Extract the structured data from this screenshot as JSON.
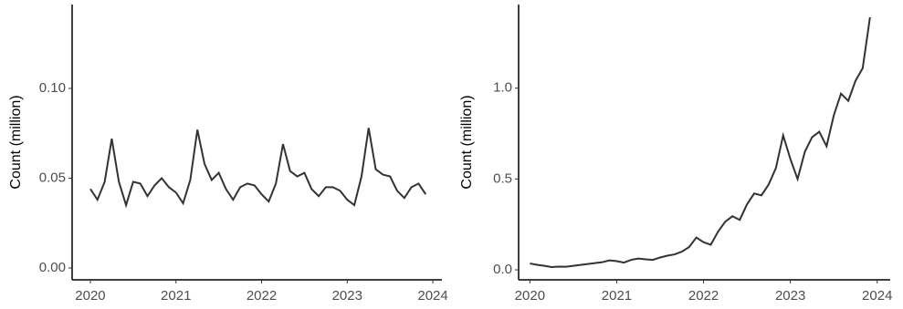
{
  "chart_data": [
    {
      "type": "line",
      "y_label": "Count (million)",
      "x": [
        2020,
        2020.083,
        2020.167,
        2020.25,
        2020.333,
        2020.417,
        2020.5,
        2020.583,
        2020.667,
        2020.75,
        2020.833,
        2020.917,
        2021,
        2021.083,
        2021.167,
        2021.25,
        2021.333,
        2021.417,
        2021.5,
        2021.583,
        2021.667,
        2021.75,
        2021.833,
        2021.917,
        2022,
        2022.083,
        2022.167,
        2022.25,
        2022.333,
        2022.417,
        2022.5,
        2022.583,
        2022.667,
        2022.75,
        2022.833,
        2022.917,
        2023,
        2023.083,
        2023.167,
        2023.25,
        2023.333,
        2023.417,
        2023.5,
        2023.583,
        2023.667,
        2023.75,
        2023.833,
        2023.917
      ],
      "series": [
        {
          "color": "#333333",
          "values": [
            0.044,
            0.038,
            0.048,
            0.072,
            0.048,
            0.035,
            0.048,
            0.047,
            0.04,
            0.046,
            0.05,
            0.045,
            0.042,
            0.036,
            0.049,
            0.077,
            0.058,
            0.049,
            0.053,
            0.044,
            0.038,
            0.045,
            0.047,
            0.046,
            0.041,
            0.037,
            0.047,
            0.069,
            0.054,
            0.051,
            0.053,
            0.044,
            0.04,
            0.045,
            0.045,
            0.043,
            0.038,
            0.035,
            0.051,
            0.078,
            0.055,
            0.052,
            0.051,
            0.043,
            0.039,
            0.045,
            0.047,
            0.041
          ]
        }
      ],
      "xlim": [
        2019.787,
        2024.106
      ],
      "xticks": [
        2020,
        2021,
        2022,
        2023,
        2024
      ],
      "ylim": [
        -0.0066,
        0.1467
      ],
      "yticks": [
        {
          "value": 0,
          "label": "0.00"
        },
        {
          "value": 0.05,
          "label": "0.05"
        },
        {
          "value": 0.1,
          "label": "0.10"
        }
      ]
    },
    {
      "type": "line",
      "y_label": "Count (million)",
      "x": [
        2020,
        2020.083,
        2020.167,
        2020.25,
        2020.333,
        2020.417,
        2020.5,
        2020.583,
        2020.667,
        2020.75,
        2020.833,
        2020.917,
        2021,
        2021.083,
        2021.167,
        2021.25,
        2021.333,
        2021.417,
        2021.5,
        2021.583,
        2021.667,
        2021.75,
        2021.833,
        2021.917,
        2022,
        2022.083,
        2022.167,
        2022.25,
        2022.333,
        2022.417,
        2022.5,
        2022.583,
        2022.667,
        2022.75,
        2022.833,
        2022.917,
        2023,
        2023.083,
        2023.167,
        2023.25,
        2023.333,
        2023.417,
        2023.5,
        2023.583,
        2023.667,
        2023.75,
        2023.833,
        2023.917
      ],
      "series": [
        {
          "color": "#333333",
          "values": [
            0.035,
            0.028,
            0.022,
            0.015,
            0.018,
            0.017,
            0.022,
            0.027,
            0.032,
            0.037,
            0.042,
            0.052,
            0.048,
            0.04,
            0.055,
            0.062,
            0.058,
            0.055,
            0.068,
            0.078,
            0.085,
            0.1,
            0.125,
            0.178,
            0.152,
            0.138,
            0.21,
            0.265,
            0.295,
            0.275,
            0.36,
            0.42,
            0.41,
            0.47,
            0.56,
            0.74,
            0.61,
            0.5,
            0.65,
            0.73,
            0.76,
            0.68,
            0.85,
            0.97,
            0.93,
            1.04,
            1.11,
            1.39
          ]
        }
      ],
      "xlim": [
        2019.87,
        2024.15
      ],
      "xticks": [
        2020,
        2021,
        2022,
        2023,
        2024
      ],
      "ylim": [
        -0.055,
        1.46
      ],
      "yticks": [
        {
          "value": 0,
          "label": "0.0"
        },
        {
          "value": 0.5,
          "label": "0.5"
        },
        {
          "value": 1,
          "label": "1.0"
        }
      ]
    }
  ]
}
